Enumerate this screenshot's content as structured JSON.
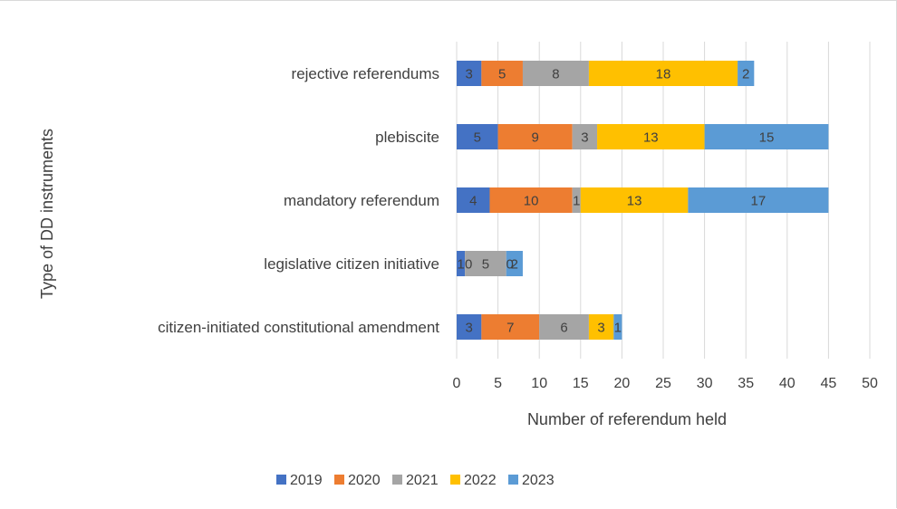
{
  "chart_data": {
    "type": "bar",
    "orientation": "horizontal",
    "stacked": true,
    "categories": [
      "rejective referendums",
      "plebiscite",
      "mandatory referendum",
      "legislative citizen initiative",
      "citizen-initiated constitutional amendment"
    ],
    "series": [
      {
        "name": "2019",
        "color": "#4472c4",
        "values": [
          3,
          5,
          4,
          1,
          3
        ],
        "labels": [
          "3",
          "5",
          "4",
          "1",
          "3"
        ]
      },
      {
        "name": "2020",
        "color": "#ed7d31",
        "values": [
          5,
          9,
          10,
          0,
          7
        ],
        "labels": [
          "5",
          "9",
          "10",
          "0",
          "7"
        ]
      },
      {
        "name": "2021",
        "color": "#a5a5a5",
        "values": [
          8,
          3,
          1,
          5,
          6
        ],
        "labels": [
          "8",
          "3",
          "1",
          "5",
          "6"
        ]
      },
      {
        "name": "2022",
        "color": "#ffc000",
        "values": [
          18,
          13,
          13,
          0,
          3
        ],
        "labels": [
          "18",
          "13",
          "13",
          "0",
          "3"
        ]
      },
      {
        "name": "2023",
        "color": "#5b9bd5",
        "values": [
          2,
          15,
          17,
          2,
          1
        ],
        "labels": [
          "2",
          "15",
          "17",
          "2",
          "1"
        ]
      }
    ],
    "xlabel": "Number of referendum held",
    "ylabel": "Type of DD instruments",
    "xlim": [
      0,
      50
    ],
    "xticks": [
      0,
      5,
      10,
      15,
      20,
      25,
      30,
      35,
      40,
      45,
      50
    ],
    "grid": "vertical",
    "legend": "bottom"
  }
}
